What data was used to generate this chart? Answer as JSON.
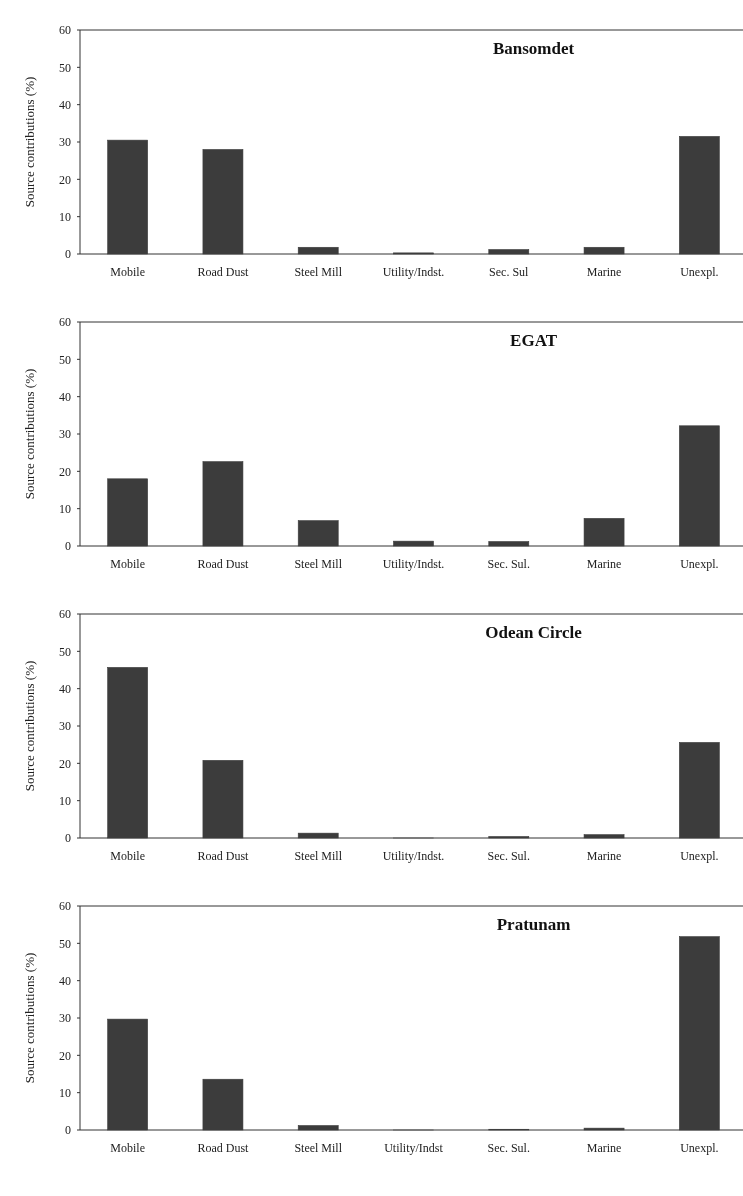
{
  "chart_data": [
    {
      "type": "bar",
      "title": "Bansomdet",
      "ylabel": "Source contributions (%)",
      "categories": [
        "Mobile",
        "Road Dust",
        "Steel Mill",
        "Utility/Indst.",
        "Sec. Sul",
        "Marine",
        "Unexpl."
      ],
      "values": [
        30.5,
        28,
        1.8,
        0.3,
        1.2,
        1.8,
        31.5
      ],
      "color": "#3c3c3c",
      "ylim": [
        0,
        60
      ],
      "yticks": [
        0,
        10,
        20,
        30,
        40,
        50,
        60
      ]
    },
    {
      "type": "bar",
      "title": "EGAT",
      "ylabel": "Source contributions (%)",
      "categories": [
        "Mobile",
        "Road Dust",
        "Steel Mill",
        "Utility/Indst.",
        "Sec. Sul.",
        "Marine",
        "Unexpl."
      ],
      "values": [
        18,
        22.6,
        6.8,
        1.3,
        1.2,
        7.4,
        32.2
      ],
      "color": "#3c3c3c",
      "ylim": [
        0,
        60
      ],
      "yticks": [
        0,
        10,
        20,
        30,
        40,
        50,
        60
      ]
    },
    {
      "type": "bar",
      "title": "Odean Circle",
      "ylabel": "Source contributions (%)",
      "categories": [
        "Mobile",
        "Road Dust",
        "Steel Mill",
        "Utility/Indst.",
        "Sec. Sul.",
        "Marine",
        "Unexpl."
      ],
      "values": [
        45.7,
        20.8,
        1.3,
        0,
        0.4,
        0.9,
        25.6
      ],
      "color": "#3c3c3c",
      "ylim": [
        0,
        60
      ],
      "yticks": [
        0,
        10,
        20,
        30,
        40,
        50,
        60
      ]
    },
    {
      "type": "bar",
      "title": "Pratunam",
      "ylabel": "Source contributions (%)",
      "categories": [
        "Mobile",
        "Road Dust",
        "Steel Mill",
        "Utility/Indst",
        "Sec. Sul.",
        "Marine",
        "Unexpl."
      ],
      "values": [
        29.7,
        13.6,
        1.2,
        0,
        0.2,
        0.5,
        51.8
      ],
      "color": "#3c3c3c",
      "ylim": [
        0,
        60
      ],
      "yticks": [
        0,
        10,
        20,
        30,
        40,
        50,
        60
      ]
    }
  ]
}
